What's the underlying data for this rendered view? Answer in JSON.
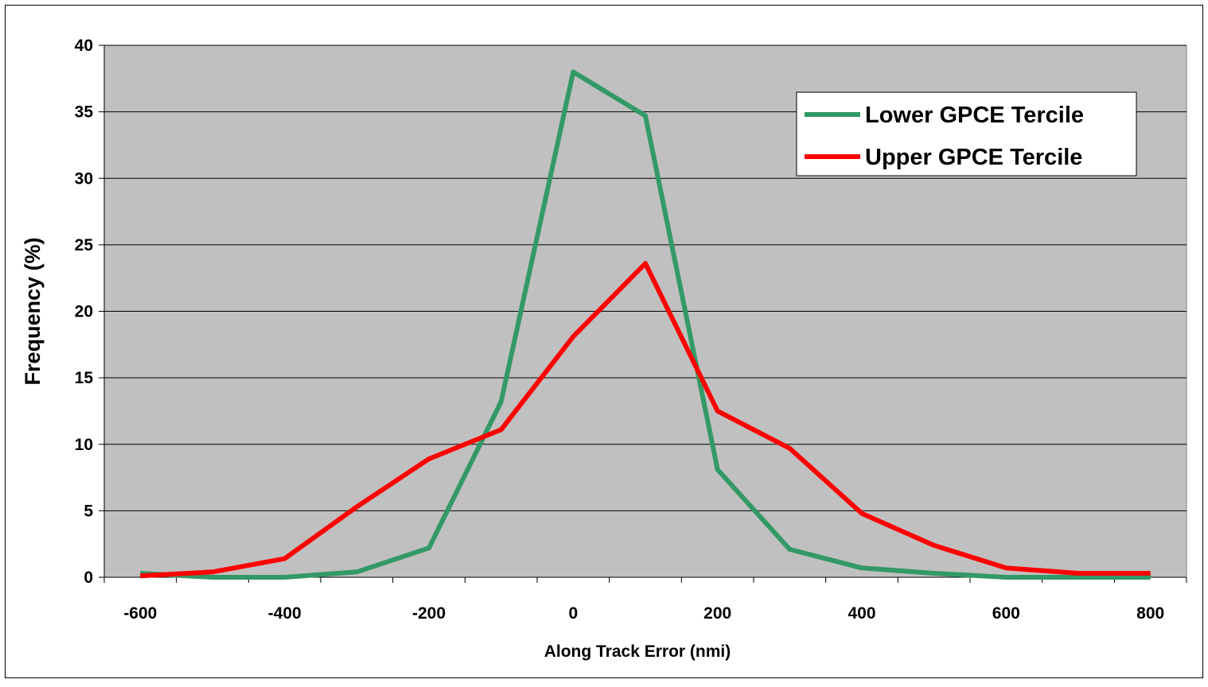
{
  "chart_data": {
    "type": "line",
    "title": "",
    "xlabel": "Along Track Error (nmi)",
    "ylabel": "Frequency (%)",
    "xlim": [
      -600,
      800
    ],
    "ylim": [
      0,
      40
    ],
    "x_ticks": [
      -600,
      -400,
      -200,
      0,
      200,
      400,
      600,
      800
    ],
    "y_ticks": [
      0,
      5,
      10,
      15,
      20,
      25,
      30,
      35,
      40
    ],
    "x_tick_labels": [
      "-600",
      "-400",
      "-200",
      "0",
      "200",
      "400",
      "600",
      "800"
    ],
    "y_tick_labels": [
      "0",
      "5",
      "10",
      "15",
      "20",
      "25",
      "30",
      "35",
      "40"
    ],
    "grid": "horizontal",
    "plot_background": "#C0C0C0",
    "legend_position": "top-right",
    "x": [
      -600,
      -500,
      -400,
      -300,
      -200,
      -100,
      0,
      100,
      200,
      300,
      400,
      500,
      600,
      700,
      800
    ],
    "series": [
      {
        "name": "Lower GPCE Tercile",
        "color": "#339966",
        "values": [
          0.3,
          0.0,
          0.0,
          0.4,
          2.2,
          13.2,
          38.0,
          34.7,
          8.1,
          2.1,
          0.7,
          0.3,
          0.0,
          0.0,
          0.0
        ]
      },
      {
        "name": "Upper GPCE Tercile",
        "color": "#FF0000",
        "values": [
          0.1,
          0.4,
          1.4,
          5.3,
          8.9,
          11.1,
          18.1,
          23.6,
          12.5,
          9.7,
          4.8,
          2.4,
          0.7,
          0.3,
          0.3
        ]
      }
    ]
  }
}
